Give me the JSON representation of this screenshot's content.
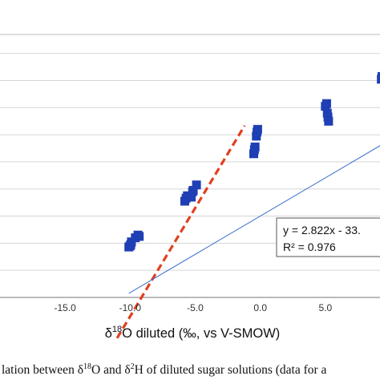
{
  "top_fragment": "",
  "chart_data": {
    "type": "scatter",
    "xlabel": "δ18O diluted (‰, vs V-SMOW)",
    "xlabel_parts": {
      "delta": "δ",
      "sup": "18",
      "rest": "O diluted (‰, vs V-SMOW)"
    },
    "x_ticks": [
      -15.0,
      -10.0,
      -5.0,
      0.0,
      5.0
    ],
    "x_tick_labels": [
      "-15.0",
      "-10.0",
      "-5.0",
      "0.0",
      "5.0"
    ],
    "xlim": [
      -20.0,
      9.2
    ],
    "ylim": [
      -63.0,
      34.0
    ],
    "y_gridlines": [
      -63,
      -53,
      -43,
      -33,
      -23,
      -13,
      -3,
      7,
      17,
      27
    ],
    "grid": true,
    "series": [
      {
        "marker": "square",
        "color": "#1f3fb4",
        "points": [
          [
            -10.1,
            -44.4
          ],
          [
            -10.0,
            -44.0
          ],
          [
            -9.95,
            -43.5
          ],
          [
            -9.9,
            -42.5
          ],
          [
            -9.6,
            -41.0
          ],
          [
            -9.4,
            -40.0
          ],
          [
            -9.3,
            -40.5
          ],
          [
            -5.8,
            -27.5
          ],
          [
            -5.7,
            -26.4
          ],
          [
            -5.6,
            -25.5
          ],
          [
            -5.3,
            -26.0
          ],
          [
            -5.2,
            -24.0
          ],
          [
            -5.15,
            -23.5
          ],
          [
            -4.9,
            -21.5
          ],
          [
            -0.5,
            -10.0
          ],
          [
            -0.45,
            -8.5
          ],
          [
            -0.4,
            -7.5
          ],
          [
            -0.3,
            -3.5
          ],
          [
            -0.25,
            -2.0
          ],
          [
            -0.2,
            -1.0
          ],
          [
            5.0,
            7.5
          ],
          [
            5.1,
            8.5
          ],
          [
            5.15,
            5.0
          ],
          [
            5.2,
            3.5
          ],
          [
            5.25,
            2.0
          ],
          [
            9.3,
            17.5
          ],
          [
            9.35,
            18.5
          ]
        ]
      }
    ],
    "fit_line": {
      "slope": 2.822,
      "intercept": -33.0,
      "color": "#3a6fd0"
    },
    "reference_line": {
      "slope": 8.0,
      "intercept": 10.0,
      "color": "#e04020",
      "style": "dashed"
    },
    "annotation": {
      "equation": "y = 2.822x - 33.",
      "r2": "R² = 0.976"
    }
  },
  "caption": {
    "lead": "lation between ",
    "d1": "δ",
    "s1": "18",
    "mid": "O and ",
    "d2": "δ",
    "s2": "2",
    "tail": "H of diluted sugar solutions (data for a"
  }
}
